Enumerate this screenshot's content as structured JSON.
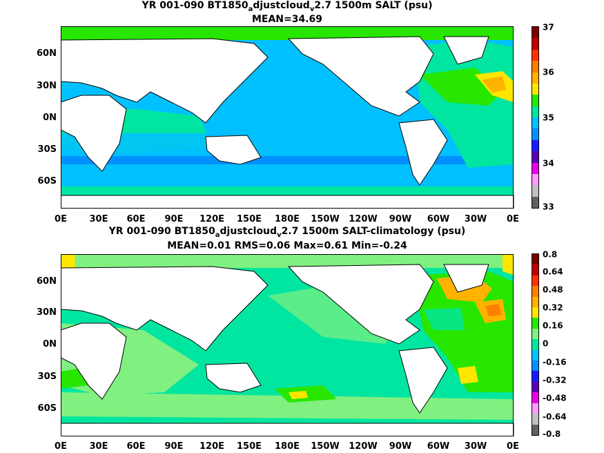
{
  "panels": [
    {
      "title_line1_pre": "YR 001-090 BT1850",
      "title_sub1": "a",
      "title_mid": "djustcloud",
      "title_sub2": "v",
      "title_post": "2.7 1500m SALT (psu)",
      "title_line2": "MEAN=34.69",
      "colorbar_ticks": [
        "37",
        "36",
        "35",
        "34",
        "33"
      ],
      "colorbar_colors": [
        "#7a0000",
        "#c00000",
        "#ff3300",
        "#ff7f00",
        "#ffb300",
        "#ffe600",
        "#27e600",
        "#00e6a0",
        "#00c0ff",
        "#0090ff",
        "#1b1bff",
        "#5a00b3",
        "#e600e6",
        "#ff99ff",
        "#c0c0c0",
        "#606060"
      ]
    },
    {
      "title_line1_pre": "YR 001-090 BT1850",
      "title_sub1": "a",
      "title_mid": "djustcloud",
      "title_sub2": "v",
      "title_post": "2.7 1500m SALT-climatology (psu)",
      "title_line2": "MEAN=0.01   RMS=0.06   Max=0.61   Min=-0.24",
      "colorbar_ticks": [
        "0.8",
        "0.64",
        "0.48",
        "0.32",
        "0.16",
        "0",
        "-0.16",
        "-0.32",
        "-0.48",
        "-0.64",
        "-0.8"
      ],
      "colorbar_colors": [
        "#7a0000",
        "#c00000",
        "#ff3300",
        "#ff7f00",
        "#ffb300",
        "#ffe600",
        "#27e600",
        "#80f080",
        "#00e6a0",
        "#00c0ff",
        "#0090ff",
        "#1b1bff",
        "#5a00b3",
        "#e600e6",
        "#ff99ff",
        "#c0c0c0",
        "#606060"
      ]
    }
  ],
  "x_ticks": [
    "0E",
    "30E",
    "60E",
    "90E",
    "120E",
    "150E",
    "180E",
    "150W",
    "120W",
    "90W",
    "60W",
    "30W",
    "0E"
  ],
  "y_ticks": [
    "60N",
    "30N",
    "0N",
    "30S",
    "60S"
  ]
}
